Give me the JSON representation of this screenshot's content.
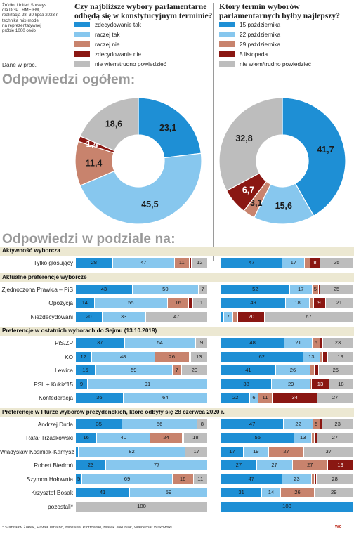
{
  "source": "Źródło: United Surveys\ndla DGP i RMF FM,\nrealizacja 28–30 lipca 2023 r.\ntechniką mix-mode\nna reprezentatywnej\npróbie 1000 osób",
  "unit_note": "Dane w proc.",
  "q1": {
    "title": "Czy najbliższe wybory parlamentarne\nodbędą się w konstytucyjnym terminie?",
    "legend": [
      "zdecydowanie tak",
      "raczej tak",
      "raczej nie",
      "zdecydowanie nie",
      "nie wiem/trudno powiedzieć"
    ]
  },
  "q2": {
    "title": "Który termin wyborów\nparlamentarnych byłby najlepszy?",
    "legend": [
      "15 października",
      "22 października",
      "29 października",
      "5 listopada",
      "nie wiem/trudno powiedzieć"
    ]
  },
  "colors": [
    "#1e8fd5",
    "#87c7ee",
    "#c8836d",
    "#8a1712",
    "#bdbdbd"
  ],
  "headings": {
    "overall": "Odpowiedzi ogółem:",
    "breakdown": "Odpowiedzi w podziale na:"
  },
  "footer": "* Stanisław Żółtek, Paweł Tanajno, Mirosław Piotrowski, Marek Jakubiak, Waldemar Witkowski",
  "brand": "wc",
  "chart_data": [
    {
      "type": "pie",
      "title": "Czy najbliższe wybory parlamentarne odbędą się w konstytucyjnym terminie?",
      "labels": [
        "zdecydowanie tak",
        "raczej tak",
        "raczej nie",
        "zdecydowanie nie",
        "nie wiem/trudno powiedzieć"
      ],
      "values": [
        23.1,
        45.5,
        11.4,
        1.4,
        18.6
      ],
      "value_labels": [
        "23,1",
        "45,5",
        "11,4",
        "1,4",
        "18,6"
      ]
    },
    {
      "type": "pie",
      "title": "Który termin wyborów parlamentarnych byłby najlepszy?",
      "labels": [
        "15 października",
        "22 października",
        "29 października",
        "5 listopada",
        "nie wiem/trudno powiedzieć"
      ],
      "values": [
        41.7,
        15.6,
        3.1,
        6.7,
        32.8
      ],
      "value_labels": [
        "41,7",
        "15,6",
        "3,1",
        "6,7",
        "32,8"
      ]
    },
    {
      "type": "bar",
      "stacked": true,
      "title": "Odpowiedzi w podziale na:",
      "groups": [
        {
          "name": "Aktywność wyborcza",
          "rows": [
            {
              "label": "Tylko głosujący",
              "q1": [
                28,
                47,
                11,
                2,
                12
              ],
              "q2": [
                47,
                17,
                4,
                8,
                25
              ]
            }
          ]
        },
        {
          "name": "Aktualne preferencje wyborcze",
          "rows": [
            {
              "label": "Zjednoczona Prawica – PiS",
              "q1": [
                43,
                50,
                0,
                0,
                7
              ],
              "q2": [
                52,
                17,
                5,
                1,
                25
              ]
            },
            {
              "label": "Opozycja",
              "q1": [
                14,
                55,
                16,
                3,
                11
              ],
              "q2": [
                49,
                18,
                3,
                9,
                21
              ]
            },
            {
              "label": "Niezdecydowani",
              "q1": [
                20,
                33,
                0,
                0,
                47
              ],
              "q2": [
                2,
                7,
                4,
                20,
                67
              ]
            }
          ]
        },
        {
          "name": "Preferencje w ostatnich wyborach do Sejmu (13.10.2019)",
          "rows": [
            {
              "label": "PiS/ZP",
              "q1": [
                37,
                54,
                0,
                0,
                9
              ],
              "q2": [
                48,
                21,
                6,
                2,
                23
              ]
            },
            {
              "label": "KO",
              "q1": [
                12,
                48,
                26,
                1,
                13
              ],
              "q2": [
                62,
                13,
                2,
                4,
                19
              ]
            },
            {
              "label": "Lewica",
              "q1": [
                15,
                59,
                7,
                0,
                20
              ],
              "q2": [
                41,
                26,
                3,
                3,
                26
              ]
            },
            {
              "label": "PSL + Kukiz'15",
              "q1": [
                9,
                91,
                0,
                0,
                0
              ],
              "q2": [
                38,
                29,
                1,
                13,
                18
              ]
            },
            {
              "label": "Konfederacja",
              "q1": [
                36,
                64,
                0,
                0,
                0
              ],
              "q2": [
                22,
                6,
                11,
                34,
                27
              ]
            }
          ]
        },
        {
          "name": "Preferencje w I turze wyborów prezydenckich, które odbyły się 28 czerwca 2020 r.",
          "rows": [
            {
              "label": "Andrzej Duda",
              "q1": [
                35,
                56,
                0,
                0,
                8
              ],
              "q2": [
                47,
                22,
                5,
                2,
                23
              ]
            },
            {
              "label": "Rafał Trzaskowski",
              "q1": [
                16,
                40,
                24,
                1,
                18
              ],
              "q2": [
                55,
                13,
                2,
                2,
                27
              ]
            },
            {
              "label": "Władysław Kosiniak-Kamysz",
              "q1": [
                2,
                82,
                0,
                0,
                17
              ],
              "q2": [
                17,
                19,
                27,
                0,
                37
              ]
            },
            {
              "label": "Robert Biedroń",
              "q1": [
                23,
                77,
                0,
                0,
                0
              ],
              "q2": [
                27,
                27,
                27,
                19,
                0
              ]
            },
            {
              "label": "Szymon Hołownia",
              "q1": [
                5,
                69,
                16,
                0,
                11
              ],
              "q2": [
                47,
                23,
                2,
                2,
                28
              ]
            },
            {
              "label": "Krzysztof Bosak",
              "q1": [
                41,
                59,
                0,
                0,
                0
              ],
              "q2": [
                31,
                14,
                26,
                0,
                29
              ]
            },
            {
              "label": "pozostali*",
              "q1": [
                0,
                0,
                0,
                0,
                100
              ],
              "q2": [
                100,
                0,
                0,
                0,
                0
              ]
            }
          ]
        }
      ]
    }
  ]
}
